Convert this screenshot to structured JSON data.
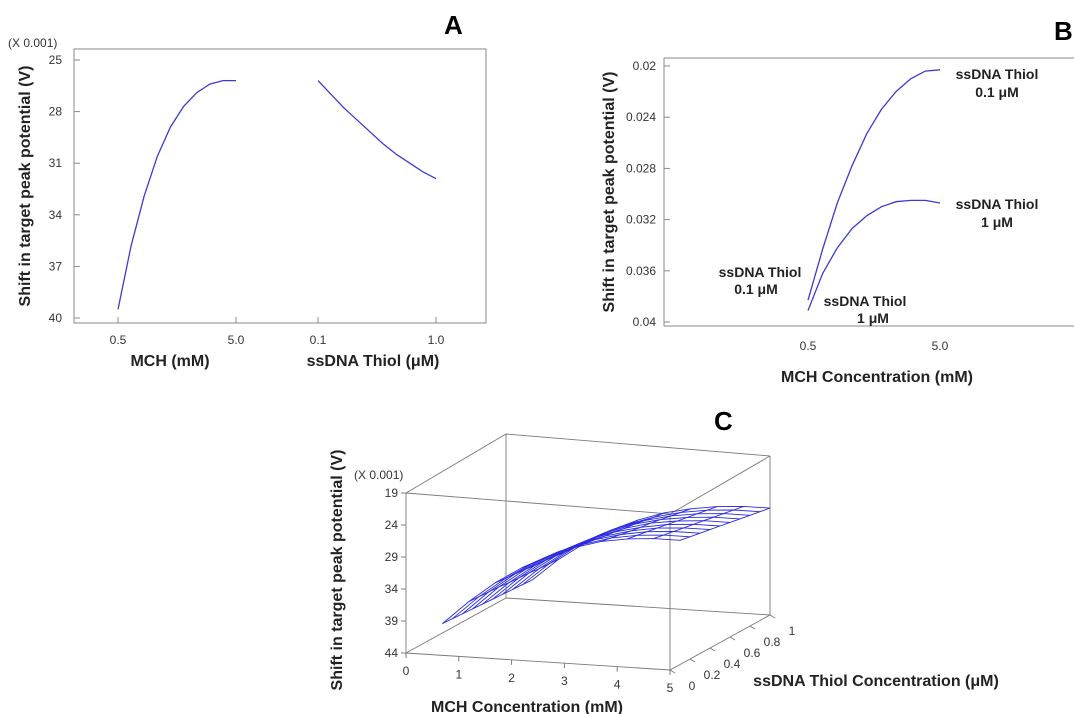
{
  "colors": {
    "curve": "#3b3bd1",
    "mesh": "#2a2ae0",
    "frame": "#8a8a8a"
  },
  "chart_data": [
    {
      "panel": "A",
      "type": "line",
      "multiplier_label": "(X 0.001)",
      "ylabel": "Shift in target peak potential (V)",
      "yticks": [
        "25",
        "28",
        "31",
        "34",
        "37",
        "40"
      ],
      "ylim": [
        25,
        40
      ],
      "y_inverted": true,
      "grid": false,
      "panels": [
        {
          "xlabel": "MCH (mM)",
          "xticks": [
            "0.5",
            "5.0"
          ],
          "xlim": [
            0.5,
            5.0
          ],
          "x": [
            0.5,
            1.0,
            1.5,
            2.0,
            2.5,
            3.0,
            3.5,
            4.0,
            4.5,
            5.0
          ],
          "y": [
            39.5,
            35.8,
            32.9,
            30.6,
            28.9,
            27.7,
            26.9,
            26.4,
            26.2,
            26.2
          ]
        },
        {
          "xlabel": "ssDNA Thiol (μM)",
          "xticks": [
            "0.1",
            "1.0"
          ],
          "xlim": [
            0.1,
            1.0
          ],
          "x": [
            0.1,
            0.2,
            0.3,
            0.4,
            0.5,
            0.6,
            0.7,
            0.8,
            0.9,
            1.0
          ],
          "y": [
            26.2,
            27.0,
            27.8,
            28.5,
            29.2,
            29.9,
            30.5,
            31.0,
            31.5,
            31.9
          ]
        }
      ]
    },
    {
      "panel": "B",
      "type": "line",
      "ylabel": "Shift in target peak potential (V)",
      "xlabel": "MCH Concentration (mM)",
      "yticks": [
        "0.02",
        "0.024",
        "0.028",
        "0.032",
        "0.036",
        "0.04"
      ],
      "ylim": [
        0.02,
        0.04
      ],
      "y_inverted": true,
      "xticks": [
        "0.5",
        "5.0"
      ],
      "xlim": [
        0.5,
        5.0
      ],
      "grid": false,
      "series": [
        {
          "x": [
            0.5,
            1.0,
            1.5,
            2.0,
            2.5,
            3.0,
            3.5,
            4.0,
            4.5,
            5.0
          ],
          "y": [
            0.0383,
            0.0343,
            0.0307,
            0.0278,
            0.0253,
            0.0234,
            0.022,
            0.021,
            0.0204,
            0.0203
          ],
          "label_start": [
            "ssDNA Thiol",
            "0.1 μM"
          ],
          "label_end": [
            "ssDNA Thiol",
            "0.1 μM"
          ]
        },
        {
          "x": [
            0.5,
            1.0,
            1.5,
            2.0,
            2.5,
            3.0,
            3.5,
            4.0,
            4.5,
            5.0
          ],
          "y": [
            0.0391,
            0.0362,
            0.0342,
            0.0327,
            0.0317,
            0.031,
            0.0306,
            0.0305,
            0.0305,
            0.0307
          ],
          "label_start": [
            "ssDNA Thiol",
            "1 μM"
          ],
          "label_end": [
            "ssDNA Thiol",
            "1 μM"
          ]
        }
      ]
    },
    {
      "panel": "C",
      "type": "surface",
      "multiplier_label": "(X 0.001)",
      "zlabel": "Shift in target peak potential (V)",
      "xlabel": "MCH Concentration (mM)",
      "ylabel": "ssDNA Thiol Concentration (μM)",
      "xticks": [
        "0",
        "1",
        "2",
        "3",
        "4",
        "5"
      ],
      "yticks": [
        "0",
        "0.2",
        "0.4",
        "0.6",
        "0.8",
        "1"
      ],
      "zticks": [
        "19",
        "24",
        "29",
        "34",
        "39",
        "44"
      ],
      "xlim": [
        0,
        5
      ],
      "ylim": [
        0,
        1
      ],
      "zlim": [
        19,
        44
      ],
      "z_inverted": true,
      "x": [
        0.5,
        1.0,
        1.5,
        2.0,
        2.5,
        3.0,
        3.5,
        4.0,
        4.5,
        5.0
      ],
      "y": [
        0.1,
        0.2,
        0.3,
        0.4,
        0.5,
        0.6,
        0.7,
        0.8,
        0.9,
        1.0
      ],
      "z": [
        [
          40.0,
          36.3,
          33.1,
          30.5,
          28.4,
          26.8,
          25.6,
          24.9,
          24.6,
          24.6
        ],
        [
          40.1,
          36.4,
          33.3,
          30.7,
          28.6,
          27.1,
          25.9,
          25.2,
          24.9,
          24.9
        ],
        [
          40.2,
          36.5,
          33.4,
          30.9,
          28.9,
          27.3,
          26.2,
          25.5,
          25.2,
          25.2
        ],
        [
          40.3,
          36.6,
          33.6,
          31.1,
          29.1,
          27.6,
          26.5,
          25.8,
          25.5,
          25.5
        ],
        [
          40.4,
          36.8,
          33.8,
          31.3,
          29.3,
          27.8,
          26.8,
          26.1,
          25.8,
          25.8
        ],
        [
          40.5,
          36.9,
          33.9,
          31.5,
          29.6,
          28.1,
          27.0,
          26.4,
          26.1,
          26.1
        ],
        [
          40.6,
          37.0,
          34.1,
          31.7,
          29.8,
          28.3,
          27.3,
          26.7,
          26.4,
          26.4
        ],
        [
          40.7,
          37.2,
          34.3,
          31.9,
          30.0,
          28.6,
          27.6,
          27.0,
          26.7,
          26.7
        ],
        [
          40.8,
          37.3,
          34.4,
          32.1,
          30.3,
          28.9,
          27.9,
          27.3,
          27.0,
          27.0
        ],
        [
          40.9,
          37.4,
          34.6,
          32.3,
          30.5,
          29.1,
          28.2,
          27.6,
          27.3,
          27.3
        ]
      ]
    }
  ]
}
